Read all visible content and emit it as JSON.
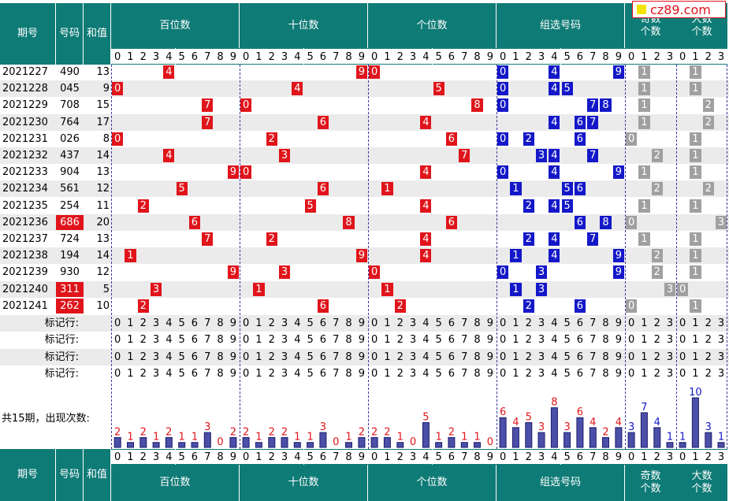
{
  "header": {
    "col_issue": "期号",
    "col_number": "号码",
    "col_sum": "和值",
    "groups": [
      "百位数",
      "十位数",
      "个位数",
      "组选号码",
      "奇数个数",
      "大数个数"
    ],
    "group_short": {
      "odd": "奇数",
      "odd2": "个数",
      "big": "大数",
      "big2": "个数"
    }
  },
  "logo": {
    "text": "cz89.com"
  },
  "digits": [
    "0",
    "1",
    "2",
    "3",
    "4",
    "5",
    "6",
    "7",
    "8",
    "9"
  ],
  "count_digits": [
    "0",
    "1",
    "2",
    "3"
  ],
  "rows": [
    {
      "issue": "2021227",
      "number": "490",
      "sum": "13",
      "highlight": false,
      "odd": 1,
      "big": 1
    },
    {
      "issue": "2021228",
      "number": "045",
      "sum": "9",
      "highlight": false,
      "odd": 1,
      "big": 1
    },
    {
      "issue": "2021229",
      "number": "708",
      "sum": "15",
      "highlight": false,
      "odd": 1,
      "big": 2
    },
    {
      "issue": "2021230",
      "number": "764",
      "sum": "17",
      "highlight": false,
      "odd": 1,
      "big": 2
    },
    {
      "issue": "2021231",
      "number": "026",
      "sum": "8",
      "highlight": false,
      "odd": 0,
      "big": 1
    },
    {
      "issue": "2021232",
      "number": "437",
      "sum": "14",
      "highlight": false,
      "odd": 2,
      "big": 1
    },
    {
      "issue": "2021233",
      "number": "904",
      "sum": "13",
      "highlight": false,
      "odd": 1,
      "big": 1
    },
    {
      "issue": "2021234",
      "number": "561",
      "sum": "12",
      "highlight": false,
      "odd": 2,
      "big": 2
    },
    {
      "issue": "2021235",
      "number": "254",
      "sum": "11",
      "highlight": false,
      "odd": 1,
      "big": 1
    },
    {
      "issue": "2021236",
      "number": "686",
      "sum": "20",
      "highlight": true,
      "odd": 0,
      "big": 3
    },
    {
      "issue": "2021237",
      "number": "724",
      "sum": "13",
      "highlight": false,
      "odd": 1,
      "big": 1
    },
    {
      "issue": "2021238",
      "number": "194",
      "sum": "14",
      "highlight": false,
      "odd": 2,
      "big": 1
    },
    {
      "issue": "2021239",
      "number": "930",
      "sum": "12",
      "highlight": false,
      "odd": 2,
      "big": 1
    },
    {
      "issue": "2021240",
      "number": "311",
      "sum": "5",
      "highlight": true,
      "odd": 3,
      "big": 0
    },
    {
      "issue": "2021241",
      "number": "262",
      "sum": "10",
      "highlight": true,
      "odd": 0,
      "big": 1
    }
  ],
  "marker_rows": {
    "label": "标记行:",
    "count": 4
  },
  "stats_label": "共15期，出现次数:",
  "chart_data": {
    "type": "bar",
    "title": "",
    "groups": [
      {
        "name": "百位数",
        "categories": [
          "0",
          "1",
          "2",
          "3",
          "4",
          "5",
          "6",
          "7",
          "8",
          "9"
        ],
        "values": [
          2,
          1,
          2,
          1,
          2,
          1,
          1,
          3,
          0,
          2
        ],
        "label_color": "#e0141b"
      },
      {
        "name": "十位数",
        "categories": [
          "0",
          "1",
          "2",
          "3",
          "4",
          "5",
          "6",
          "7",
          "8",
          "9"
        ],
        "values": [
          2,
          1,
          2,
          2,
          1,
          1,
          3,
          0,
          1,
          2
        ],
        "label_color": "#e0141b"
      },
      {
        "name": "个位数",
        "categories": [
          "0",
          "1",
          "2",
          "3",
          "4",
          "5",
          "6",
          "7",
          "8",
          "9"
        ],
        "values": [
          2,
          2,
          1,
          0,
          5,
          1,
          2,
          1,
          1,
          0
        ],
        "label_color": "#e0141b"
      },
      {
        "name": "组选号码",
        "categories": [
          "0",
          "1",
          "2",
          "3",
          "4",
          "5",
          "6",
          "7",
          "8",
          "9"
        ],
        "values": [
          6,
          4,
          5,
          3,
          8,
          3,
          6,
          4,
          2,
          4
        ],
        "label_color": "#e0141b"
      },
      {
        "name": "奇数个数",
        "categories": [
          "0",
          "1",
          "2",
          "3"
        ],
        "values": [
          3,
          7,
          4,
          1
        ],
        "label_color": "#1418c8"
      },
      {
        "name": "大数个数",
        "categories": [
          "0",
          "1",
          "2",
          "3"
        ],
        "values": [
          1,
          10,
          3,
          1
        ],
        "label_color": "#1418c8"
      }
    ]
  },
  "colors": {
    "header_bg": "#0f7b76",
    "red_mark": "#e0141b",
    "blue_mark": "#1418c8",
    "gray_mark": "#a0a0a0",
    "row_alt": "#ebebeb"
  }
}
